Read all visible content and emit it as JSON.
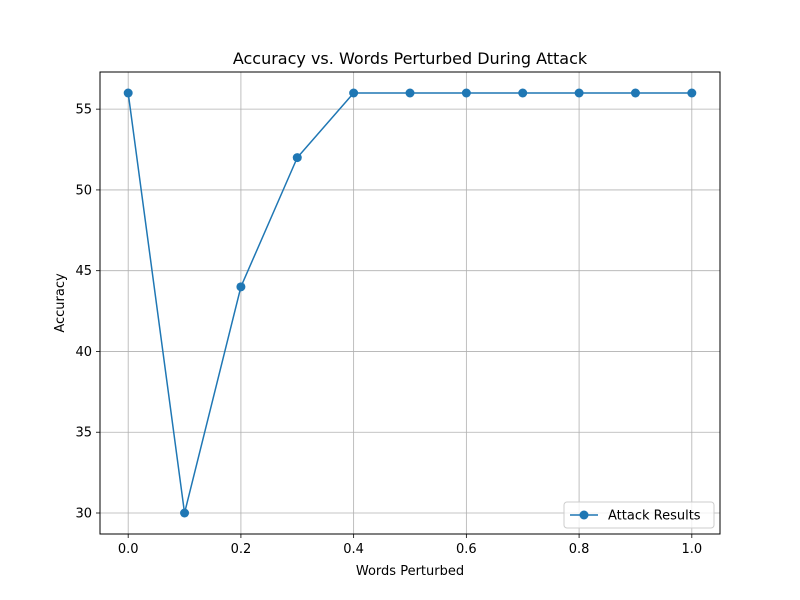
{
  "chart_data": {
    "type": "line",
    "title": "Accuracy vs. Words Perturbed During Attack",
    "xlabel": "Words Perturbed",
    "ylabel": "Accuracy",
    "xlim": [
      -0.05,
      1.05
    ],
    "ylim": [
      28.7,
      57.3
    ],
    "xticks": [
      0.0,
      0.2,
      0.4,
      0.6,
      0.8,
      1.0
    ],
    "xtick_labels": [
      "0.0",
      "0.2",
      "0.4",
      "0.6",
      "0.8",
      "1.0"
    ],
    "yticks": [
      30,
      35,
      40,
      45,
      50,
      55
    ],
    "ytick_labels": [
      "30",
      "35",
      "40",
      "45",
      "50",
      "55"
    ],
    "grid": true,
    "legend_position": "lower-right",
    "series": [
      {
        "name": "Attack Results",
        "color": "#1f77b4",
        "marker": "circle",
        "x": [
          0.0,
          0.1,
          0.2,
          0.3,
          0.4,
          0.5,
          0.6,
          0.7,
          0.8,
          0.9,
          1.0
        ],
        "y": [
          56,
          30,
          44,
          52,
          56,
          56,
          56,
          56,
          56,
          56,
          56
        ]
      }
    ]
  }
}
